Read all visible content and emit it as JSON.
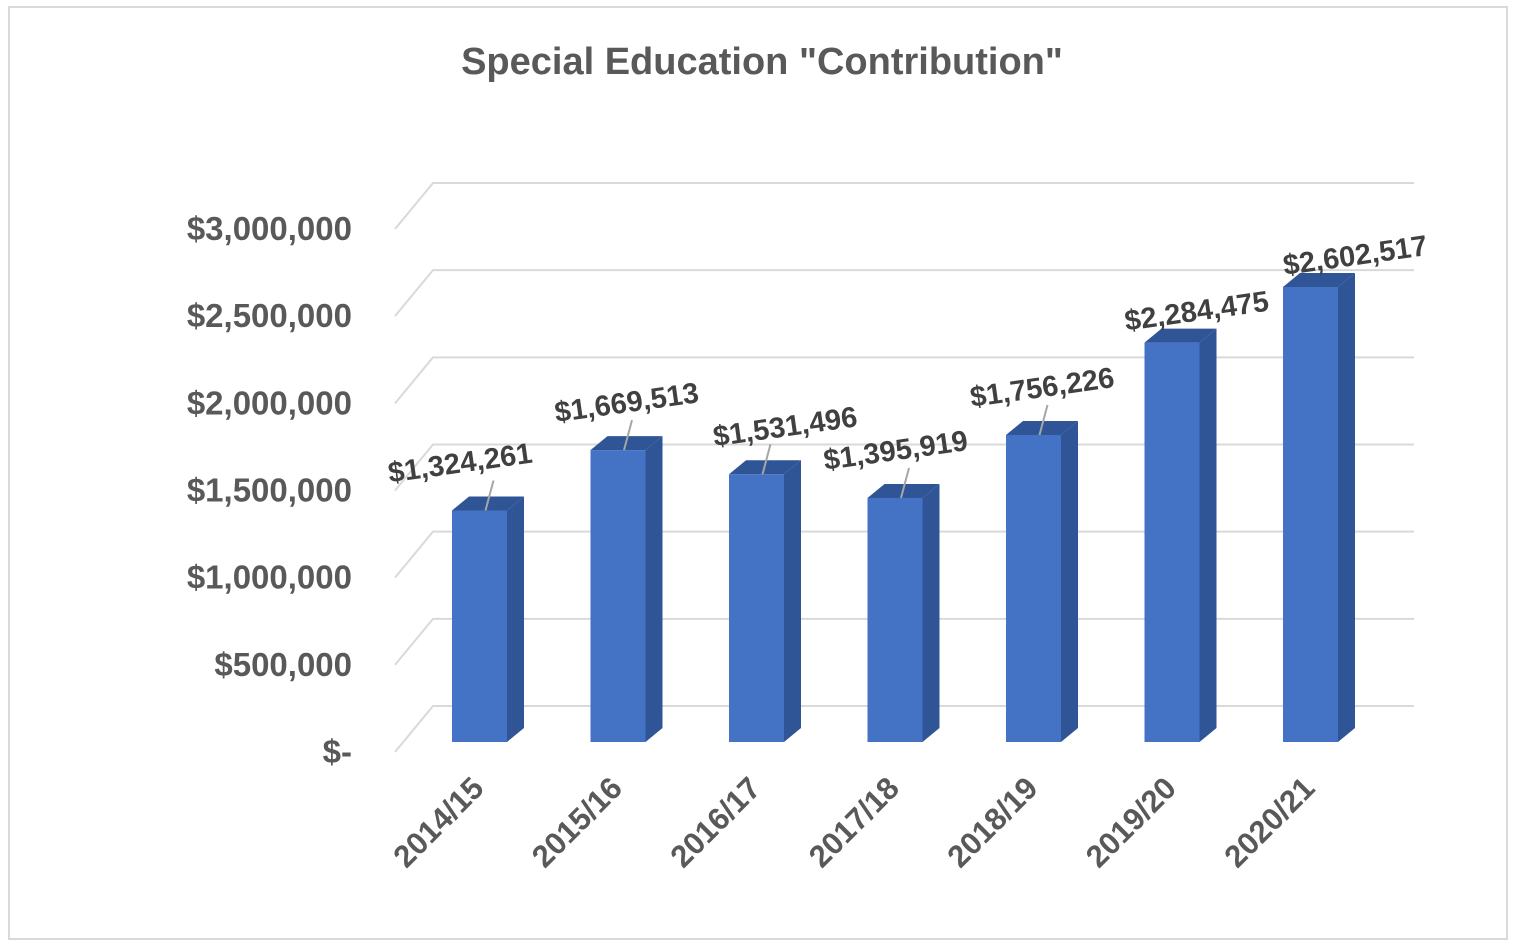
{
  "chart_data": {
    "type": "bar",
    "title": "Special Education \"Contribution\"",
    "xlabel": "",
    "ylabel": "",
    "categories": [
      "2014/15",
      "2015/16",
      "2016/17",
      "2017/18",
      "2018/19",
      "2019/20",
      "2020/21"
    ],
    "values": [
      1324261,
      1669513,
      1531496,
      1395919,
      1756226,
      2284475,
      2602517
    ],
    "data_labels": [
      "$1,324,261",
      "$1,669,513",
      "$1,531,496",
      "$1,395,919",
      "$1,756,226",
      "$2,284,475",
      "$2,602,517"
    ],
    "y_tick_values": [
      0,
      500000,
      1000000,
      1500000,
      2000000,
      2500000,
      3000000
    ],
    "y_tick_labels": [
      "$-",
      "$500,000",
      "$1,000,000",
      "$1,500,000",
      "$2,000,000",
      "$2,500,000",
      "$3,000,000"
    ],
    "ylim": [
      0,
      3000000
    ],
    "grid": true,
    "legend": "none",
    "three_d": true,
    "colors": {
      "bar_front": "#4472c4",
      "bar_side": "#2f5597",
      "bar_top": "#2f5597",
      "gridline": "#d9d9d9",
      "text": "#595959",
      "data_label": "#404040"
    }
  }
}
